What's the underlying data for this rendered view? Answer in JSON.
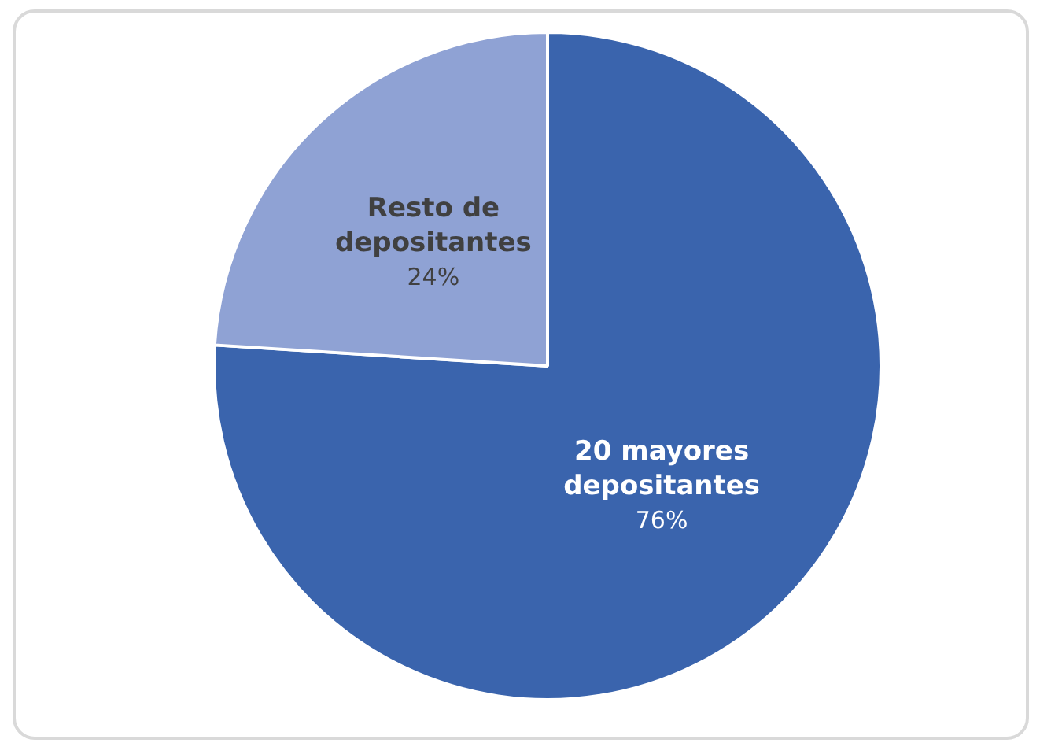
{
  "chart_data": {
    "type": "pie",
    "categories": [
      "20 mayores depositantes",
      "Resto de depositantes"
    ],
    "values": [
      76,
      24
    ],
    "value_labels": [
      "76%",
      "24%"
    ],
    "colors": [
      "#3a64ad",
      "#8fa2d4"
    ],
    "legend": false
  }
}
